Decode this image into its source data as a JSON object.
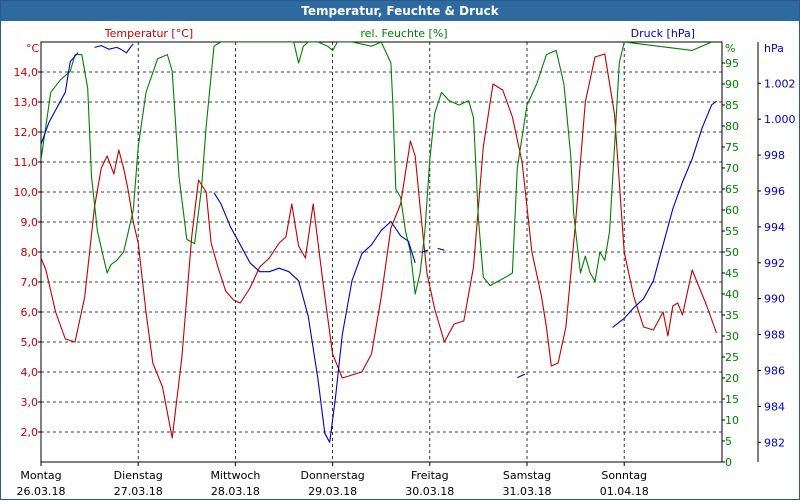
{
  "window_title": "Temperatur, Feuchte & Druck",
  "chart_data": {
    "type": "line",
    "title": "Temperatur, Feuchte & Druck",
    "x_days": [
      {
        "day": "Montag",
        "date": "26.03.18"
      },
      {
        "day": "Dienstag",
        "date": "27.03.18"
      },
      {
        "day": "Mittwoch",
        "date": "28.03.18"
      },
      {
        "day": "Donnerstag",
        "date": "29.03.18"
      },
      {
        "day": "Freitag",
        "date": "30.03.18"
      },
      {
        "day": "Samstag",
        "date": "31.03.18"
      },
      {
        "day": "Sonntag",
        "date": "01.04.18"
      }
    ],
    "grid": true,
    "axes": {
      "temperature": {
        "label": "Temperatur [°C]",
        "unit": "°C",
        "range": [
          1,
          15
        ],
        "ticks": [
          "2,0",
          "3,0",
          "4,0",
          "5,0",
          "6,0",
          "7,0",
          "8,0",
          "9,0",
          "10,0",
          "11,0",
          "12,0",
          "13,0",
          "14,0"
        ],
        "color": "#c00000"
      },
      "humidity": {
        "label": "rel. Feuchte [%]",
        "unit": "%",
        "range": [
          0,
          100
        ],
        "ticks": [
          "0",
          "5",
          "10",
          "15",
          "20",
          "25",
          "30",
          "35",
          "40",
          "45",
          "50",
          "55",
          "60",
          "65",
          "70",
          "75",
          "80",
          "85",
          "90",
          "95"
        ],
        "color": "#008000"
      },
      "pressure": {
        "label": "Druck [hPa]",
        "unit": "hPa",
        "range": [
          980.9,
          1004.3
        ],
        "ticks": [
          "982",
          "984",
          "986",
          "988",
          "990",
          "992",
          "994",
          "996",
          "998",
          "1.000",
          "1.002"
        ],
        "color": "#0000c0"
      }
    },
    "series": [
      {
        "name": "Temperatur [°C]",
        "axis": "temperature",
        "color": "#c00000",
        "x": [
          0,
          0.05,
          0.15,
          0.25,
          0.35,
          0.45,
          0.55,
          0.62,
          0.68,
          0.75,
          0.8,
          0.85,
          0.9,
          0.95,
          1.0,
          1.08,
          1.15,
          1.25,
          1.35,
          1.45,
          1.5,
          1.55,
          1.62,
          1.7,
          1.75,
          1.82,
          1.9,
          1.98,
          2.05,
          2.15,
          2.25,
          2.35,
          2.45,
          2.52,
          2.58,
          2.65,
          2.72,
          2.8,
          2.9,
          3.0,
          3.1,
          3.2,
          3.3,
          3.4,
          3.5,
          3.6,
          3.7,
          3.8,
          3.85,
          3.9,
          3.97,
          4.05,
          4.15,
          4.25,
          4.35,
          4.45,
          4.55,
          4.65,
          4.75,
          4.85,
          4.95,
          5.05,
          5.15,
          5.2,
          5.25,
          5.32,
          5.4,
          5.5,
          5.6,
          5.7,
          5.8,
          5.9,
          6.0,
          6.1,
          6.2,
          6.3,
          6.4,
          6.45,
          6.5,
          6.55,
          6.6,
          6.7,
          6.85,
          6.95
        ],
        "y": [
          7.8,
          7.4,
          6.0,
          5.1,
          5.0,
          6.5,
          9.5,
          10.8,
          11.2,
          10.6,
          11.4,
          10.8,
          10.0,
          9.0,
          8.3,
          6.0,
          4.3,
          3.5,
          1.8,
          4.5,
          6.5,
          8.5,
          10.4,
          10.0,
          8.3,
          7.5,
          6.7,
          6.4,
          6.3,
          6.8,
          7.5,
          7.8,
          8.3,
          8.5,
          9.6,
          8.2,
          7.8,
          9.6,
          7.0,
          4.6,
          3.8,
          3.9,
          4.0,
          4.6,
          6.5,
          8.8,
          9.6,
          11.7,
          11.2,
          9.5,
          7.3,
          6.1,
          5.0,
          5.6,
          5.7,
          7.5,
          11.5,
          13.6,
          13.4,
          12.5,
          11.0,
          8.0,
          6.5,
          5.5,
          4.2,
          4.3,
          5.5,
          9.0,
          13.0,
          14.5,
          14.6,
          12.6,
          8.0,
          6.5,
          5.5,
          5.4,
          6.0,
          5.2,
          6.2,
          6.3,
          5.9,
          7.4,
          6.2,
          5.3
        ]
      },
      {
        "name": "rel. Feuchte [%]",
        "axis": "humidity",
        "color": "#008000",
        "x": [
          0,
          0.05,
          0.1,
          0.2,
          0.3,
          0.35,
          0.42,
          0.48,
          0.52,
          0.58,
          0.63,
          0.68,
          0.72,
          0.78,
          0.85,
          0.9,
          0.95,
          1.0,
          1.08,
          1.2,
          1.3,
          1.35,
          1.42,
          1.5,
          1.58,
          1.65,
          1.7,
          1.78,
          1.85,
          1.92,
          2.6,
          2.65,
          2.7,
          2.75,
          2.85,
          2.95,
          3.0,
          3.05,
          3.1,
          3.2,
          3.4,
          3.5,
          3.6,
          3.62,
          3.65,
          3.7,
          3.75,
          3.8,
          3.85,
          3.9,
          3.95,
          4.0,
          4.05,
          4.12,
          4.2,
          4.3,
          4.4,
          4.45,
          4.5,
          4.55,
          4.62,
          4.7,
          4.78,
          4.85,
          4.9,
          5.0,
          5.1,
          5.2,
          5.3,
          5.38,
          5.45,
          5.48,
          5.5,
          5.55,
          5.6,
          5.65,
          5.7,
          5.75,
          5.8,
          5.85,
          5.9,
          5.95,
          6.0,
          6.7,
          6.9
        ],
        "y": [
          72,
          80,
          88,
          91,
          93,
          97,
          97,
          89,
          68,
          55,
          50,
          45,
          47,
          48,
          50,
          55,
          60,
          75,
          88,
          96,
          97,
          93,
          68,
          53,
          52,
          65,
          80,
          99,
          100,
          100,
          100,
          95,
          99,
          100,
          100,
          99,
          98,
          100,
          100,
          100,
          99,
          100,
          95,
          85,
          65,
          63,
          55,
          50,
          40,
          45,
          55,
          72,
          83,
          88,
          86,
          85,
          86,
          82,
          58,
          44,
          42,
          43,
          44,
          45,
          70,
          85,
          90,
          97,
          98,
          90,
          73,
          59,
          55,
          45,
          49,
          45,
          43,
          50,
          48,
          55,
          75,
          95,
          100,
          98,
          100
        ]
      },
      {
        "name": "Druck [hPa]",
        "axis": "pressure",
        "color": "#0000c0",
        "segments": [
          {
            "x": [
              0,
              0.08,
              0.18,
              0.25,
              0.3,
              0.38
            ],
            "y": [
              998.6,
              999.8,
              1000.8,
              1001.5,
              1003.2,
              1003.7
            ]
          },
          {
            "x": [
              0.55,
              0.62,
              0.7,
              0.78,
              0.82,
              0.88,
              0.92,
              0.95
            ],
            "y": [
              1004.0,
              1004.1,
              1003.9,
              1004.0,
              1003.9,
              1003.7,
              1004.0,
              1004.2
            ]
          },
          {
            "x": [
              1.78,
              1.85,
              1.95,
              2.05,
              2.15,
              2.25,
              2.35,
              2.45,
              2.55,
              2.65,
              2.75,
              2.85,
              2.92,
              2.97,
              3.03,
              3.1,
              3.2,
              3.3,
              3.4,
              3.5,
              3.6,
              3.7,
              3.78,
              3.85
            ],
            "y": [
              995.9,
              995.3,
              994.0,
              993.0,
              992.0,
              991.5,
              991.5,
              991.7,
              991.5,
              991.0,
              989.0,
              985.5,
              982.5,
              982.0,
              984.5,
              988.0,
              991.0,
              992.5,
              993.0,
              993.8,
              994.3,
              993.5,
              993.2,
              992.0
            ]
          },
          {
            "x": [
              3.92,
              3.98
            ],
            "y": [
              992.6,
              992.7
            ]
          },
          {
            "x": [
              4.08,
              4.15
            ],
            "y": [
              992.8,
              992.7
            ]
          },
          {
            "x": [
              4.9,
              4.98
            ],
            "y": [
              985.6,
              985.8
            ]
          },
          {
            "x": [
              5.88,
              6.0,
              6.1,
              6.2,
              6.3,
              6.4,
              6.5,
              6.6,
              6.7,
              6.8,
              6.9,
              6.95
            ],
            "y": [
              988.4,
              988.9,
              989.5,
              990.0,
              991.0,
              993.0,
              995.0,
              996.5,
              997.8,
              999.5,
              1000.8,
              1001.0
            ]
          }
        ]
      }
    ]
  }
}
